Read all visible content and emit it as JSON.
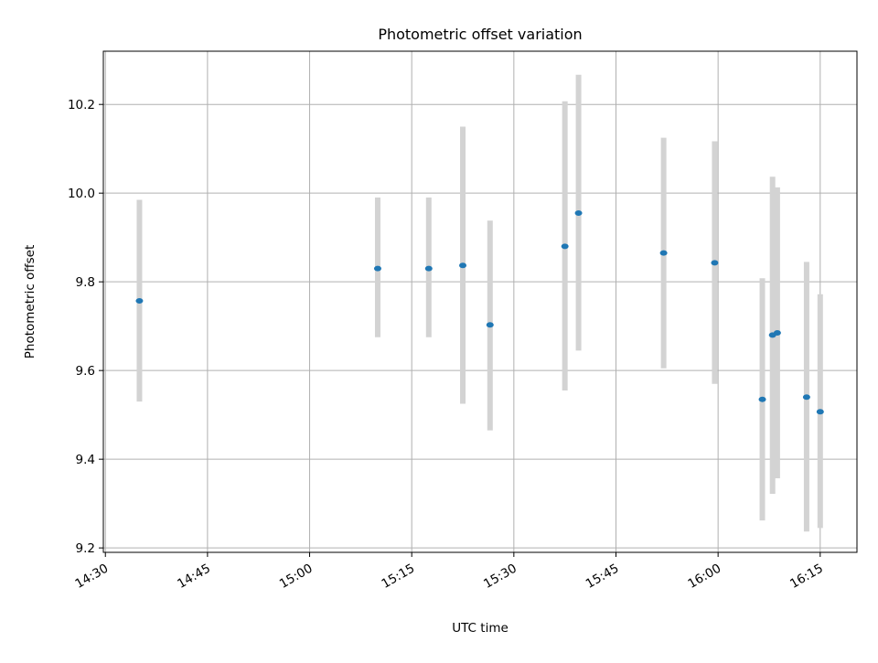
{
  "chart_data": {
    "type": "scatter",
    "title": "Photometric offset variation",
    "xlabel": "UTC time",
    "ylabel": "Photometric offset",
    "x_ticks": [
      "14:30",
      "14:45",
      "15:00",
      "15:15",
      "15:30",
      "15:45",
      "16:00",
      "16:15"
    ],
    "y_ticks": [
      "9.2",
      "9.4",
      "9.6",
      "9.8",
      "10.0",
      "10.2"
    ],
    "xlim": [
      "14:29.7",
      "16:20.4"
    ],
    "ylim": [
      9.19,
      10.32
    ],
    "grid": true,
    "series": [
      {
        "marker_color": "#1f77b4",
        "errorbar_color": "#d3d3d3",
        "points": [
          {
            "x": "14:35.0",
            "y": 9.757,
            "yerr_low": 9.53,
            "yerr_high": 9.985
          },
          {
            "x": "15:10.0",
            "y": 9.83,
            "yerr_low": 9.675,
            "yerr_high": 9.99
          },
          {
            "x": "15:17.5",
            "y": 9.83,
            "yerr_low": 9.675,
            "yerr_high": 9.99
          },
          {
            "x": "15:22.5",
            "y": 9.837,
            "yerr_low": 9.525,
            "yerr_high": 10.15
          },
          {
            "x": "15:26.5",
            "y": 9.703,
            "yerr_low": 9.465,
            "yerr_high": 9.938
          },
          {
            "x": "15:37.5",
            "y": 9.88,
            "yerr_low": 9.555,
            "yerr_high": 10.207
          },
          {
            "x": "15:39.5",
            "y": 9.955,
            "yerr_low": 9.645,
            "yerr_high": 10.267
          },
          {
            "x": "15:52.0",
            "y": 9.865,
            "yerr_low": 9.605,
            "yerr_high": 10.125
          },
          {
            "x": "15:59.5",
            "y": 9.843,
            "yerr_low": 9.57,
            "yerr_high": 10.117
          },
          {
            "x": "16:06.5",
            "y": 9.535,
            "yerr_low": 9.262,
            "yerr_high": 9.808
          },
          {
            "x": "16:08.0",
            "y": 9.68,
            "yerr_low": 9.322,
            "yerr_high": 10.037
          },
          {
            "x": "16:08.7",
            "y": 9.685,
            "yerr_low": 9.357,
            "yerr_high": 10.013
          },
          {
            "x": "16:13.0",
            "y": 9.54,
            "yerr_low": 9.237,
            "yerr_high": 9.845
          },
          {
            "x": "16:15.0",
            "y": 9.507,
            "yerr_low": 9.245,
            "yerr_high": 9.772
          }
        ]
      }
    ]
  }
}
